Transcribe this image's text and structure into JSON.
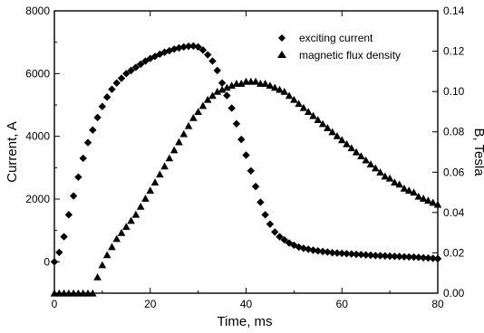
{
  "chart_data": {
    "type": "scatter",
    "title": "",
    "xlabel": "Time, ms",
    "ylabel_left": "Current, A",
    "ylabel_right": "B, Tesla",
    "xlim": [
      0,
      80
    ],
    "ylim_left": [
      -1000,
      8000
    ],
    "ylim_right": [
      0.0,
      0.14
    ],
    "x_ticks": [
      0,
      20,
      40,
      60,
      80
    ],
    "y_left_ticks": [
      0,
      2000,
      4000,
      6000,
      8000
    ],
    "y_right_ticks": [
      0.0,
      0.02,
      0.04,
      0.06,
      0.08,
      0.1,
      0.12,
      0.14
    ],
    "y_right_tick_labels": [
      "0.00",
      "0.02",
      "0.04",
      "0.06",
      "0.08",
      "0.10",
      "0.12",
      "0.14"
    ],
    "grid": false,
    "legend_position": "top-right",
    "series": [
      {
        "name": "exciting current",
        "marker": "diamond",
        "axis": "left",
        "x": [
          0,
          1,
          2,
          3,
          4,
          5,
          6,
          7,
          8,
          9,
          10,
          11,
          12,
          13,
          14,
          15,
          16,
          17,
          18,
          19,
          20,
          21,
          22,
          23,
          24,
          25,
          26,
          27,
          28,
          29,
          30,
          31,
          32,
          33,
          34,
          35,
          36,
          37,
          38,
          39,
          40,
          41,
          42,
          43,
          44,
          45,
          46,
          47,
          48,
          49,
          50,
          51,
          52,
          53,
          54,
          55,
          56,
          57,
          58,
          59,
          60,
          61,
          62,
          63,
          64,
          65,
          66,
          67,
          68,
          69,
          70,
          71,
          72,
          73,
          74,
          75,
          76,
          77,
          78,
          79,
          80
        ],
        "y": [
          0,
          300,
          800,
          1500,
          2100,
          2700,
          3300,
          3800,
          4200,
          4600,
          4950,
          5250,
          5500,
          5700,
          5850,
          6000,
          6100,
          6200,
          6300,
          6400,
          6480,
          6550,
          6620,
          6680,
          6730,
          6780,
          6820,
          6850,
          6870,
          6880,
          6850,
          6750,
          6600,
          6400,
          6100,
          5700,
          5300,
          4900,
          4400,
          3900,
          3400,
          2900,
          2400,
          1900,
          1500,
          1200,
          950,
          800,
          700,
          600,
          530,
          470,
          430,
          400,
          370,
          350,
          330,
          310,
          290,
          280,
          270,
          260,
          250,
          240,
          230,
          220,
          210,
          200,
          195,
          190,
          180,
          175,
          170,
          160,
          155,
          150,
          140,
          130,
          120,
          110,
          100
        ]
      },
      {
        "name": "magnetic flux density",
        "marker": "triangle",
        "axis": "right",
        "x": [
          0,
          1,
          2,
          3,
          4,
          5,
          6,
          7,
          8,
          9,
          10,
          11,
          12,
          13,
          14,
          15,
          16,
          17,
          18,
          19,
          20,
          21,
          22,
          23,
          24,
          25,
          26,
          27,
          28,
          29,
          30,
          31,
          32,
          33,
          34,
          35,
          36,
          37,
          38,
          39,
          40,
          41,
          42,
          43,
          44,
          45,
          46,
          47,
          48,
          49,
          50,
          51,
          52,
          53,
          54,
          55,
          56,
          57,
          58,
          59,
          60,
          61,
          62,
          63,
          64,
          65,
          66,
          67,
          68,
          69,
          70,
          71,
          72,
          73,
          74,
          75,
          76,
          77,
          78,
          79,
          80
        ],
        "y": [
          0,
          0,
          0,
          0,
          0,
          0,
          0,
          0,
          0,
          0.008,
          0.014,
          0.019,
          0.023,
          0.027,
          0.03,
          0.033,
          0.036,
          0.039,
          0.043,
          0.047,
          0.051,
          0.055,
          0.059,
          0.063,
          0.067,
          0.071,
          0.075,
          0.079,
          0.083,
          0.087,
          0.09,
          0.093,
          0.096,
          0.098,
          0.1,
          0.101,
          0.102,
          0.103,
          0.104,
          0.104,
          0.105,
          0.105,
          0.105,
          0.104,
          0.104,
          0.103,
          0.102,
          0.101,
          0.1,
          0.098,
          0.096,
          0.094,
          0.092,
          0.09,
          0.088,
          0.086,
          0.084,
          0.082,
          0.08,
          0.078,
          0.076,
          0.074,
          0.072,
          0.07,
          0.068,
          0.066,
          0.064,
          0.062,
          0.06,
          0.058,
          0.057,
          0.055,
          0.054,
          0.052,
          0.051,
          0.05,
          0.048,
          0.047,
          0.046,
          0.045,
          0.044
        ]
      }
    ]
  }
}
